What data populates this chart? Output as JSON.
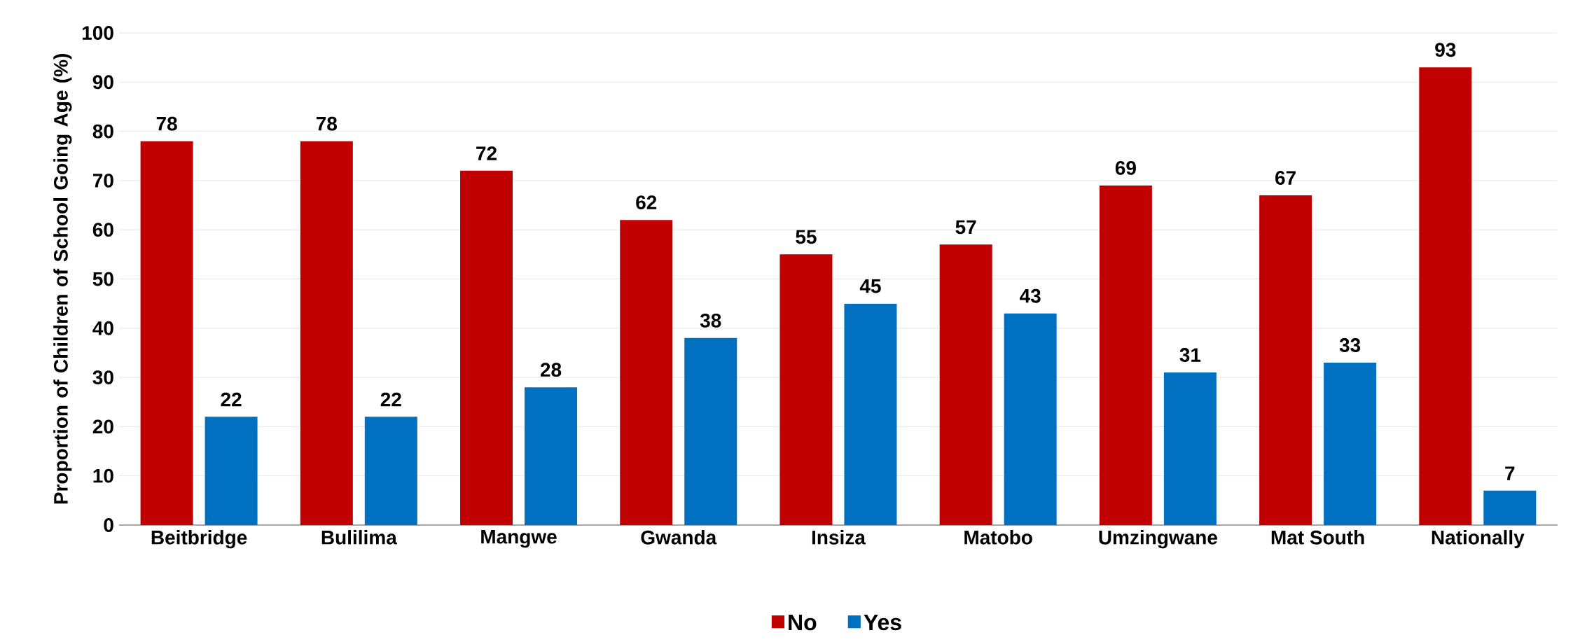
{
  "chart_data": {
    "type": "bar",
    "ylabel": "Proportion of Children of School Going Age (%)",
    "categories": [
      "Beitbridge",
      "Bulilima",
      "Mangwe",
      "Gwanda",
      "Insiza",
      "Matobo",
      "Umzingwane",
      "Mat South",
      "Nationally"
    ],
    "series": [
      {
        "name": "No",
        "color": "#c00000",
        "values": [
          78,
          78,
          72,
          62,
          55,
          57,
          69,
          67,
          93
        ]
      },
      {
        "name": "Yes",
        "color": "#0070c0",
        "values": [
          22,
          22,
          28,
          38,
          45,
          43,
          31,
          33,
          7
        ]
      }
    ],
    "ylim": [
      0,
      100
    ],
    "yticks": [
      0,
      10,
      20,
      30,
      40,
      50,
      60,
      70,
      80,
      90,
      100
    ],
    "grid": "y",
    "legend": "bottom",
    "data_labels": true
  }
}
